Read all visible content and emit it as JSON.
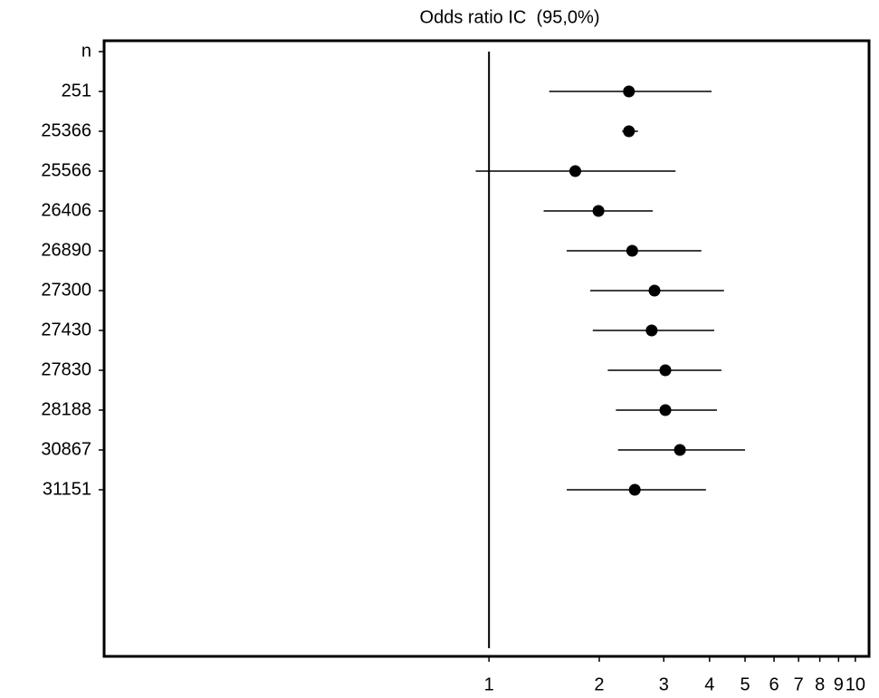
{
  "chart_data": {
    "type": "forest",
    "title": "Odds ratio IC  (95,0%)",
    "categories": [
      "n",
      "251",
      "25366",
      "25566",
      "26406",
      "26890",
      "27300",
      "27430",
      "27830",
      "28188",
      "30867",
      "31151"
    ],
    "values": [
      null,
      2.41,
      2.41,
      1.72,
      1.99,
      2.46,
      2.83,
      2.78,
      3.03,
      3.03,
      3.32,
      2.5
    ],
    "lower": [
      null,
      1.46,
      2.31,
      0.92,
      1.41,
      1.63,
      1.89,
      1.92,
      2.11,
      2.22,
      2.25,
      1.63
    ],
    "upper": [
      null,
      4.05,
      2.55,
      3.23,
      2.8,
      3.8,
      4.38,
      4.12,
      4.31,
      4.19,
      5.0,
      3.91
    ],
    "color": "#000000",
    "xlim": [
      0.089,
      10.9
    ],
    "xticks": [
      1,
      2,
      3,
      4,
      5,
      6,
      7,
      8,
      9,
      10
    ],
    "log_x": true,
    "reference_line": 1
  }
}
